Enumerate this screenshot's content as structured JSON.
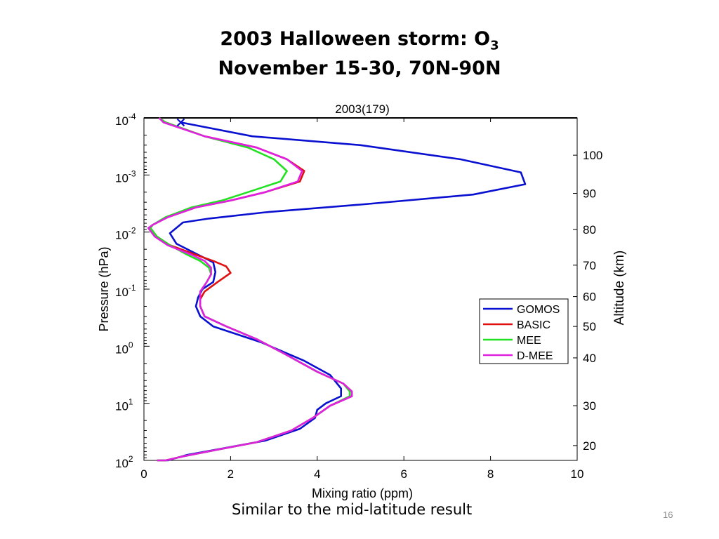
{
  "slide": {
    "title_line1_prefix": "2003 Halloween storm: O",
    "title_line1_sub": "3",
    "title_line2": "November 15-30, 70N-90N",
    "caption": "Similar to the mid-latitude result",
    "page_number": "16"
  },
  "colors": {
    "GOMOS": "#0a10d0",
    "BASIC": "#e01010",
    "MEE": "#22e022",
    "D-MEE": "#e020e0"
  },
  "chart_data": {
    "type": "line",
    "title": "2003(179)",
    "xlabel": "Mixing ratio (ppm)",
    "ylabel": "Pressure (hPa)",
    "y2label": "Altitude (km)",
    "xlim": [
      0,
      10
    ],
    "ylim_pressure_log": [
      0.0001,
      100
    ],
    "y_scale": "log",
    "y_reversed": true,
    "x_ticks": [
      "0",
      "2",
      "4",
      "6",
      "8",
      "10"
    ],
    "y_ticks": [
      {
        "p": 0.0001,
        "base": "10",
        "exp": "-4"
      },
      {
        "p": 0.001,
        "base": "10",
        "exp": "-3"
      },
      {
        "p": 0.01,
        "base": "10",
        "exp": "-2"
      },
      {
        "p": 0.1,
        "base": "10",
        "exp": "-1"
      },
      {
        "p": 1,
        "base": "10",
        "exp": "0"
      },
      {
        "p": 10,
        "base": "10",
        "exp": "1"
      },
      {
        "p": 100,
        "base": "10",
        "exp": "2"
      }
    ],
    "altitude_ticks": [
      {
        "label": "100",
        "p": 0.00045
      },
      {
        "label": "90",
        "p": 0.0021
      },
      {
        "label": "80",
        "p": 0.009
      },
      {
        "label": "70",
        "p": 0.038
      },
      {
        "label": "60",
        "p": 0.135
      },
      {
        "label": "50",
        "p": 0.45
      },
      {
        "label": "40",
        "p": 1.6
      },
      {
        "label": "30",
        "p": 11
      },
      {
        "label": "20",
        "p": 55
      }
    ],
    "legend_position": "lower-right",
    "marker": {
      "series": "GOMOS",
      "symbol": "x",
      "x": 0.85,
      "p": 0.00012
    },
    "series": [
      {
        "name": "GOMOS",
        "points": [
          [
            0.85,
            0.00012
          ],
          [
            2.5,
            0.00021
          ],
          [
            5.0,
            0.0003
          ],
          [
            7.3,
            0.00053
          ],
          [
            8.7,
            0.0009
          ],
          [
            8.8,
            0.00145
          ],
          [
            7.6,
            0.0022
          ],
          [
            5.0,
            0.0033
          ],
          [
            2.8,
            0.0045
          ],
          [
            1.5,
            0.0058
          ],
          [
            0.9,
            0.0068
          ],
          [
            0.6,
            0.0105
          ],
          [
            0.75,
            0.016
          ],
          [
            1.6,
            0.034
          ],
          [
            1.65,
            0.05
          ],
          [
            1.6,
            0.075
          ],
          [
            1.35,
            0.1
          ],
          [
            1.25,
            0.14
          ],
          [
            1.2,
            0.2
          ],
          [
            1.3,
            0.3
          ],
          [
            1.6,
            0.45
          ],
          [
            2.7,
            0.85
          ],
          [
            3.7,
            1.8
          ],
          [
            4.3,
            3.2
          ],
          [
            4.55,
            5.5
          ],
          [
            4.55,
            7.5
          ],
          [
            4.2,
            10
          ],
          [
            4.0,
            13
          ],
          [
            3.95,
            18
          ],
          [
            3.6,
            28
          ],
          [
            2.8,
            45
          ],
          [
            1.8,
            62
          ],
          [
            1.0,
            80
          ],
          [
            0.55,
            105
          ],
          [
            0.35,
            130
          ]
        ]
      },
      {
        "name": "BASIC",
        "points": [
          [
            0.35,
            0.0001
          ],
          [
            0.5,
            0.00012
          ],
          [
            1.4,
            0.00021
          ],
          [
            2.6,
            0.00033
          ],
          [
            3.3,
            0.00053
          ],
          [
            3.7,
            0.00085
          ],
          [
            3.6,
            0.0013
          ],
          [
            2.8,
            0.002
          ],
          [
            2.0,
            0.0028
          ],
          [
            1.2,
            0.0037
          ],
          [
            0.55,
            0.0055
          ],
          [
            0.2,
            0.0075
          ],
          [
            0.15,
            0.0085
          ],
          [
            0.3,
            0.012
          ],
          [
            0.6,
            0.017
          ],
          [
            1.2,
            0.025
          ],
          [
            1.6,
            0.032
          ],
          [
            1.9,
            0.04
          ],
          [
            2.0,
            0.052
          ],
          [
            1.7,
            0.075
          ],
          [
            1.4,
            0.11
          ],
          [
            1.3,
            0.15
          ],
          [
            1.3,
            0.2
          ],
          [
            1.4,
            0.3
          ],
          [
            1.9,
            0.45
          ],
          [
            2.6,
            0.75
          ],
          [
            3.2,
            1.3
          ],
          [
            4.0,
            2.8
          ],
          [
            4.6,
            4.5
          ],
          [
            4.8,
            6.2
          ],
          [
            4.8,
            7.5
          ],
          [
            4.3,
            11
          ],
          [
            3.9,
            18
          ],
          [
            3.4,
            30
          ],
          [
            2.6,
            48
          ],
          [
            1.6,
            67
          ],
          [
            0.9,
            85
          ],
          [
            0.5,
            105
          ],
          [
            0.3,
            125
          ]
        ]
      },
      {
        "name": "MEE",
        "points": [
          [
            0.35,
            0.0001
          ],
          [
            0.5,
            0.00012
          ],
          [
            1.4,
            0.00021
          ],
          [
            2.4,
            0.00033
          ],
          [
            3.0,
            0.00053
          ],
          [
            3.3,
            0.00085
          ],
          [
            3.15,
            0.0013
          ],
          [
            2.4,
            0.002
          ],
          [
            1.8,
            0.0028
          ],
          [
            1.1,
            0.0037
          ],
          [
            0.5,
            0.0055
          ],
          [
            0.2,
            0.0075
          ],
          [
            0.15,
            0.0085
          ],
          [
            0.3,
            0.012
          ],
          [
            0.6,
            0.017
          ],
          [
            1.0,
            0.025
          ],
          [
            1.3,
            0.032
          ],
          [
            1.5,
            0.042
          ],
          [
            1.55,
            0.055
          ],
          [
            1.45,
            0.075
          ],
          [
            1.3,
            0.11
          ],
          [
            1.3,
            0.15
          ],
          [
            1.3,
            0.2
          ],
          [
            1.4,
            0.3
          ],
          [
            1.9,
            0.45
          ],
          [
            2.6,
            0.75
          ],
          [
            3.2,
            1.3
          ],
          [
            4.0,
            2.8
          ],
          [
            4.6,
            4.5
          ],
          [
            4.75,
            6.2
          ],
          [
            4.75,
            7.5
          ],
          [
            4.3,
            11
          ],
          [
            3.9,
            18
          ],
          [
            3.4,
            30
          ],
          [
            2.6,
            48
          ],
          [
            1.6,
            67
          ],
          [
            0.9,
            85
          ],
          [
            0.5,
            105
          ],
          [
            0.3,
            125
          ]
        ]
      },
      {
        "name": "D-MEE",
        "points": [
          [
            0.35,
            0.0001
          ],
          [
            0.45,
            0.00012
          ],
          [
            1.4,
            0.00021
          ],
          [
            2.6,
            0.00033
          ],
          [
            3.3,
            0.00053
          ],
          [
            3.65,
            0.00085
          ],
          [
            3.55,
            0.0013
          ],
          [
            2.8,
            0.002
          ],
          [
            2.0,
            0.0028
          ],
          [
            1.2,
            0.0037
          ],
          [
            0.55,
            0.0055
          ],
          [
            0.2,
            0.0075
          ],
          [
            0.1,
            0.0085
          ],
          [
            0.25,
            0.012
          ],
          [
            0.55,
            0.017
          ],
          [
            1.1,
            0.025
          ],
          [
            1.4,
            0.032
          ],
          [
            1.55,
            0.042
          ],
          [
            1.55,
            0.055
          ],
          [
            1.45,
            0.075
          ],
          [
            1.3,
            0.11
          ],
          [
            1.3,
            0.15
          ],
          [
            1.3,
            0.2
          ],
          [
            1.4,
            0.3
          ],
          [
            1.9,
            0.45
          ],
          [
            2.6,
            0.75
          ],
          [
            3.2,
            1.3
          ],
          [
            4.0,
            2.8
          ],
          [
            4.6,
            4.5
          ],
          [
            4.8,
            6.2
          ],
          [
            4.8,
            7.5
          ],
          [
            4.3,
            11
          ],
          [
            3.9,
            18
          ],
          [
            3.4,
            30
          ],
          [
            2.6,
            48
          ],
          [
            1.6,
            67
          ],
          [
            0.9,
            85
          ],
          [
            0.5,
            105
          ],
          [
            0.3,
            125
          ]
        ]
      }
    ]
  }
}
